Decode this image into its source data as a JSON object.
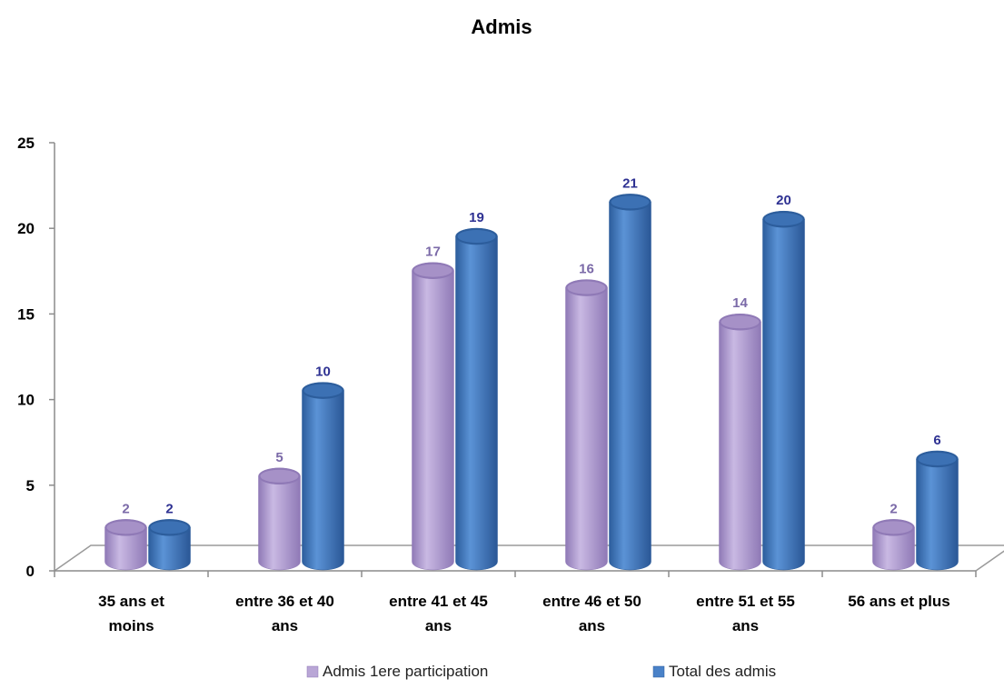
{
  "chart_data": {
    "type": "bar",
    "title": "Admis",
    "xlabel": "",
    "ylabel": "",
    "ylim": [
      0,
      25
    ],
    "yticks": [
      "0",
      "5",
      "10",
      "15",
      "20",
      "25"
    ],
    "grid": false,
    "legend_position": "bottom",
    "categories": [
      [
        "35 ans et",
        "moins"
      ],
      [
        "entre 36 et 40",
        "ans"
      ],
      [
        "entre 41 et 45",
        "ans"
      ],
      [
        "entre 46 et 50",
        "ans"
      ],
      [
        "entre 51 et 55",
        "ans"
      ],
      [
        "56 ans et plus"
      ]
    ],
    "series": [
      {
        "name": "Admis 1ere participation",
        "color": "#b9a6d6",
        "shade": "#8f79b6",
        "label_color": "#7b6aa8",
        "values": [
          2,
          5,
          17,
          16,
          14,
          2
        ]
      },
      {
        "name": "Total des admis",
        "color": "#4a82c8",
        "shade": "#2c5d9c",
        "label_color": "#2e3192",
        "values": [
          2,
          10,
          19,
          21,
          20,
          6
        ]
      }
    ]
  }
}
